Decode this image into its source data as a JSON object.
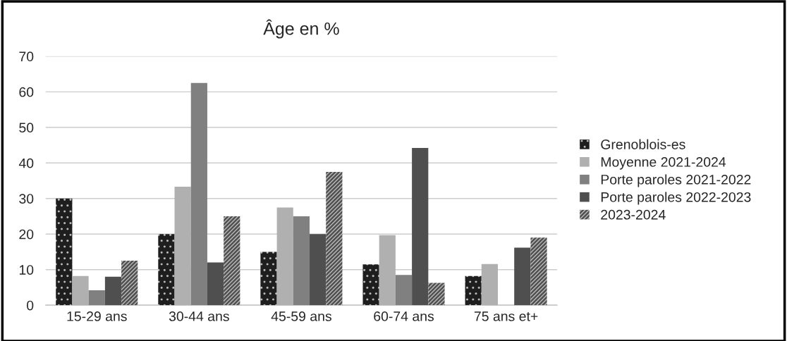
{
  "chart_data": {
    "type": "bar",
    "title": "Âge en %",
    "categories": [
      "15-29 ans",
      "30-44 ans",
      "45-59 ans",
      "60-74 ans",
      "75 ans et+"
    ],
    "series": [
      {
        "name": "Grenoblois-es",
        "color": "#1e1e1e",
        "values": [
          30,
          20,
          15,
          11.5,
          8.2
        ]
      },
      {
        "name": "Moyenne 2021-2024",
        "color": "#b0b0b0",
        "values": [
          8.2,
          33.3,
          27.5,
          19.7,
          11.6
        ]
      },
      {
        "name": "Porte paroles 2021-2022",
        "color": "#808080",
        "values": [
          4.2,
          62.5,
          25,
          8.5,
          0
        ]
      },
      {
        "name": "Porte paroles 2022-2023",
        "color": "#4f4f4f",
        "values": [
          8,
          12,
          20,
          44.2,
          16.2
        ]
      },
      {
        "name": "2023-2024",
        "color": "#505050",
        "values": [
          12.5,
          25,
          37.5,
          6.3,
          19
        ]
      }
    ],
    "ylim": [
      0,
      70
    ],
    "yticks": [
      0,
      10,
      20,
      30,
      40,
      50,
      60,
      70
    ],
    "grid": "y",
    "legend": "right"
  }
}
